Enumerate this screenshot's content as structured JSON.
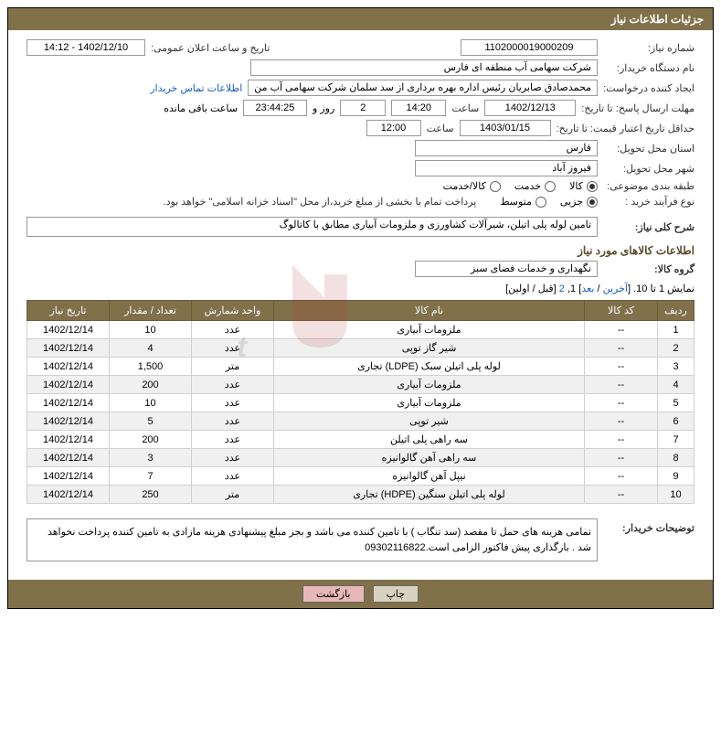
{
  "header": {
    "title": "جزئیات اطلاعات نیاز"
  },
  "fields": {
    "need_no_label": "شماره نیاز:",
    "need_no": "1102000019000209",
    "announce_label": "تاریخ و ساعت اعلان عمومی:",
    "announce_value": "1402/12/10 - 14:12",
    "buyer_label": "نام دستگاه خریدار:",
    "buyer_value": "شرکت سهامی آب منطقه ای فارس",
    "creator_label": "ایجاد کننده درخواست:",
    "creator_value": "محمدصادق صابریان رئیس اداره بهره برداری از سد سلمان شرکت سهامی آب من",
    "contact_link": "اطلاعات تماس خریدار",
    "deadline_label": "مهلت ارسال پاسخ:",
    "until_label": "تا تاریخ:",
    "deadline_date": "1402/12/13",
    "time_label": "ساعت",
    "deadline_time": "14:20",
    "remain_days": "2",
    "day_and": "روز و",
    "remain_time": "23:44:25",
    "remain_suffix": "ساعت باقی مانده",
    "valid_label": "حداقل تاریخ اعتبار قیمت:",
    "valid_date": "1403/01/15",
    "valid_time": "12:00",
    "province_label": "استان محل تحویل:",
    "province": "فارس",
    "city_label": "شهر محل تحویل:",
    "city": "فیروز آباد",
    "category_label": "طبقه بندی موضوعی:",
    "cat_goods": "کالا",
    "cat_service": "خدمت",
    "cat_both": "کالا/خدمت",
    "process_label": "نوع فرآیند خرید :",
    "proc_partial": "جزیی",
    "proc_medium": "متوسط",
    "proc_note": "پرداخت تمام یا بخشی از مبلغ خرید،از محل \"اسناد خزانه اسلامی\" خواهد بود.",
    "desc_label": "شرح کلی نیاز:",
    "desc_value": "تامین لوله پلی اتیلن، شیرآلات کشاورزی و ملزومات آبیاری مطابق با کاتالوگ",
    "goods_info_title": "اطلاعات کالاهای مورد نیاز",
    "group_label": "گروه کالا:",
    "group_value": "نگهداری و خدمات فضای سبز",
    "pagination_prefix": "نمایش 1 تا 10. [",
    "pg_last": "آخرین",
    "pg_sep1": " / ",
    "pg_next": "بعد",
    "pg_nums": "] 1, ",
    "pg_2": "2",
    "pg_after": " [قبل / اولین]",
    "buyer_notes_label": "توضیحات خریدار:",
    "buyer_notes": "تمامی هزینه های حمل تا مقصد (سد تنگاب ) با تامین کننده می باشد و بجز مبلغ پیشنهادی هزینه مازادی به تامین کننده پرداخت نخواهد شد . بارگذاری پیش فاکتور الزامی است.09302116822",
    "print_btn": "چاپ",
    "back_btn": "بازگشت"
  },
  "table": {
    "headers": [
      "ردیف",
      "کد کالا",
      "نام کالا",
      "واحد شمارش",
      "تعداد / مقدار",
      "تاریخ نیاز"
    ],
    "rows": [
      [
        "1",
        "--",
        "ملزومات آبیاری",
        "عدد",
        "10",
        "1402/12/14"
      ],
      [
        "2",
        "--",
        "شیر گاز توپی",
        "عدد",
        "4",
        "1402/12/14"
      ],
      [
        "3",
        "--",
        "لوله پلی اتیلن سبک (LDPE) تجاری",
        "متر",
        "1,500",
        "1402/12/14"
      ],
      [
        "4",
        "--",
        "ملزومات آبیاری",
        "عدد",
        "200",
        "1402/12/14"
      ],
      [
        "5",
        "--",
        "ملزومات آبیاری",
        "عدد",
        "10",
        "1402/12/14"
      ],
      [
        "6",
        "--",
        "شیر توپی",
        "عدد",
        "5",
        "1402/12/14"
      ],
      [
        "7",
        "--",
        "سه راهی پلی اتیلن",
        "عدد",
        "200",
        "1402/12/14"
      ],
      [
        "8",
        "--",
        "سه راهی آهن گالوانیزه",
        "عدد",
        "3",
        "1402/12/14"
      ],
      [
        "9",
        "--",
        "نیپل آهن گالوانیزه",
        "عدد",
        "7",
        "1402/12/14"
      ],
      [
        "10",
        "--",
        "لوله پلی اتیلن سنگین (HDPE) تجاری",
        "متر",
        "250",
        "1402/12/14"
      ]
    ]
  },
  "colors": {
    "header_bg": "#81714a",
    "link": "#1a5ec4"
  }
}
